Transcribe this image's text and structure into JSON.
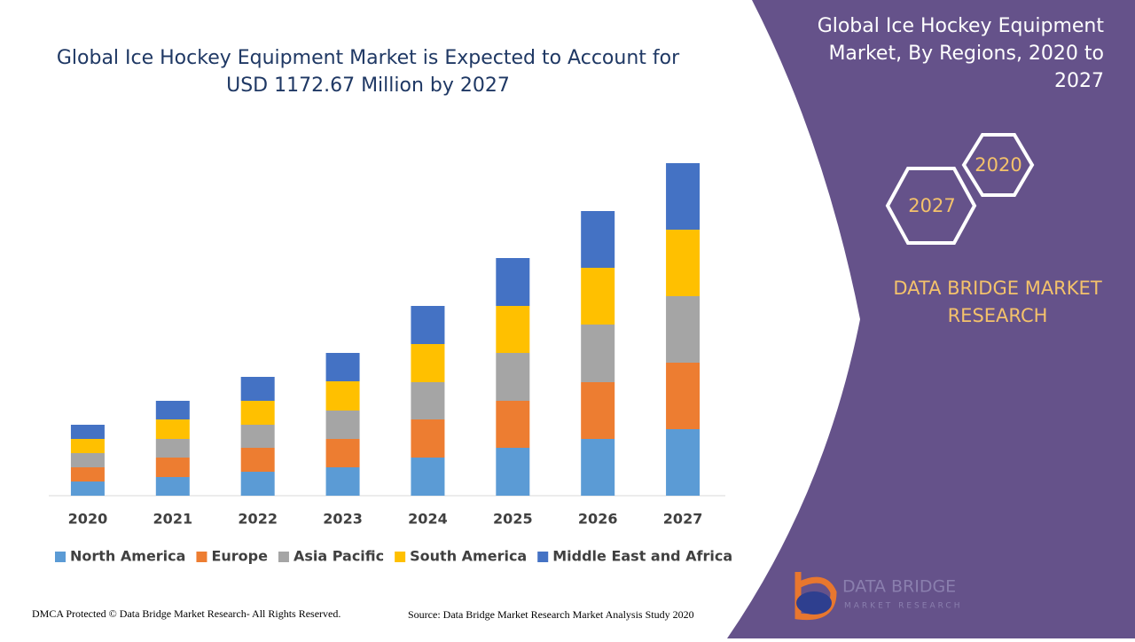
{
  "chart_data": {
    "type": "stacked_bar",
    "title": "Global Ice Hockey Equipment Market is Expected to Account for USD 1172.67 Million by 2027",
    "categories": [
      "2020",
      "2021",
      "2022",
      "2023",
      "2024",
      "2025",
      "2026",
      "2027"
    ],
    "series": [
      {
        "name": "North America",
        "color": "#5b9bd5",
        "values": [
          16,
          21,
          27,
          32,
          43,
          54,
          64,
          75
        ]
      },
      {
        "name": "Europe",
        "color": "#ed7d31",
        "values": [
          16,
          22,
          27,
          32,
          43,
          53,
          64,
          75
        ]
      },
      {
        "name": "Asia Pacific",
        "color": "#a5a5a5",
        "values": [
          16,
          21,
          26,
          32,
          42,
          54,
          65,
          75
        ]
      },
      {
        "name": "South America",
        "color": "#ffc000",
        "values": [
          16,
          22,
          27,
          33,
          43,
          53,
          64,
          75
        ]
      },
      {
        "name": "Middle East and Africa",
        "color": "#4472c4",
        "values": [
          16,
          21,
          27,
          32,
          43,
          54,
          64,
          75
        ]
      }
    ],
    "ylim": [
      0,
      400
    ]
  },
  "panel": {
    "title": "Global Ice Hockey Equipment Market, By Regions, 2020 to 2027",
    "hex_start": "2020",
    "hex_end": "2027",
    "brand": "DATA BRIDGE MARKET RESEARCH",
    "logo_name": "DATA BRIDGE",
    "logo_sub": "MARKET RESEARCH"
  },
  "footer": {
    "copyright": "DMCA Protected © Data Bridge Market Research- All Rights Reserved.",
    "source": "Source: Data Bridge Market Research Market Analysis Study 2020"
  }
}
